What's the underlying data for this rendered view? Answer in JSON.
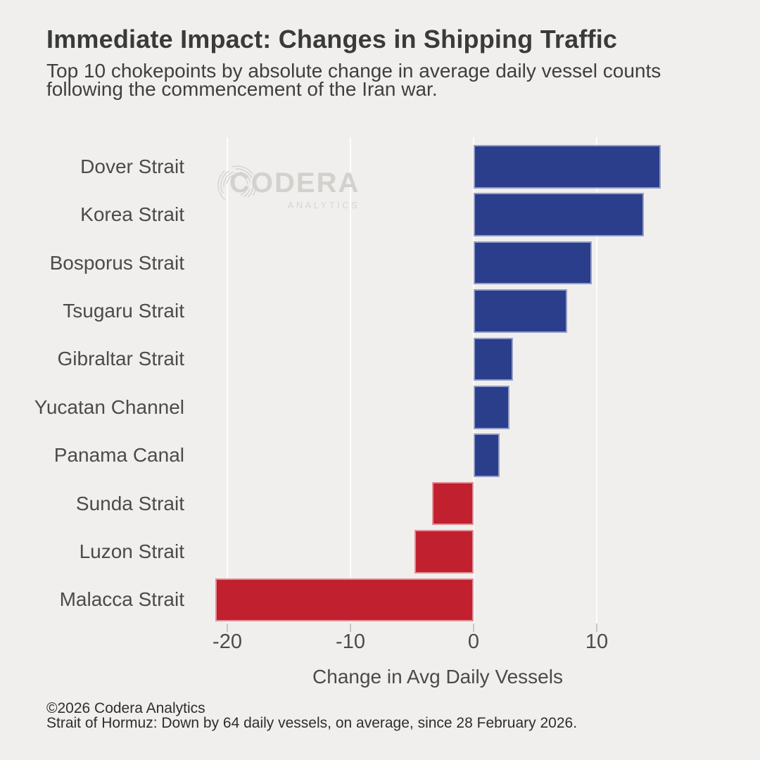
{
  "header": {
    "title": "Immediate Impact: Changes in Shipping Traffic",
    "subtitle": "Top 10 chokepoints by absolute change in average daily vessel counts\nfollowing the commencement of the Iran war."
  },
  "watermark": {
    "brand": "CODERA",
    "tagline": "ANALYTICS"
  },
  "chart_data": {
    "type": "bar",
    "orientation": "horizontal",
    "title": "Immediate Impact: Changes in Shipping Traffic",
    "subtitle": "Top 10 chokepoints by absolute change in average daily vessel counts following the commencement of the Iran war.",
    "categories": [
      "Dover Strait",
      "Korea Strait",
      "Bosporus Strait",
      "Tsugaru Strait",
      "Gibraltar Strait",
      "Yucatan Channel",
      "Panama Canal",
      "Sunda Strait",
      "Luzon Strait",
      "Malacca Strait"
    ],
    "values": [
      15.2,
      13.8,
      9.6,
      7.6,
      3.2,
      2.9,
      2.1,
      -3.4,
      -4.8,
      -21.0
    ],
    "xlabel": "Change in Avg Daily Vessels",
    "ylabel": "",
    "x_ticks": [
      -20,
      -10,
      0,
      10
    ],
    "xlim": [
      -22.8,
      17.0
    ],
    "grid": "vertical-gridlines-only",
    "legend": "none",
    "bar_colors": {
      "positive": "#2b3e8c",
      "negative": "#c1202f"
    }
  },
  "footer": {
    "line1": "©2026 Codera Analytics",
    "line2": "Strait of Hormuz: Down by 64 daily vessels, on average, since 28 February 2026."
  },
  "colors": {
    "background": "#f0efed",
    "positive_bar": "#2b3e8c",
    "negative_bar": "#c1202f",
    "gridline": "rgba(255,255,255,0.85)",
    "axis_tick": "#c8c6c3",
    "title_text": "#3a3a3a",
    "label_text": "#4b4b4b",
    "footer_text": "#2e2e2e",
    "watermark_text": "#d3d1ce"
  }
}
